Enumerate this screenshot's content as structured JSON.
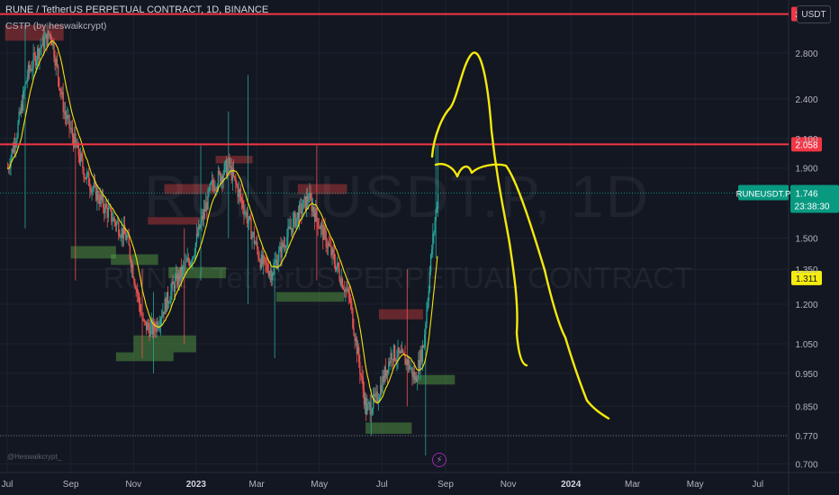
{
  "header": {
    "title": "RUNE / TetherUS PERPETUAL CONTRACT, 1D, BINANCE",
    "indicator": "CSTP (by heswaikcrypt)",
    "currency_button": "USDT"
  },
  "watermark": {
    "symbol": "RUNEUSDT.P, 1D",
    "description": "RUNE / TetherUS PERPETUAL CONTRACT"
  },
  "author": "@Heswaikcrypt_",
  "icons": {
    "events": "lightning-icon"
  },
  "colors": {
    "background": "#131722",
    "grid": "#1e222d",
    "up": "#26a69a",
    "down": "#ef5350",
    "resistance": "#f23645",
    "ma": "#f5e20b",
    "drawing": "#f5e90d",
    "price_label": "#089981",
    "ma_label": "#f5ec0f",
    "supply_zone": "#c83c3c",
    "demand_zone": "#5aa846"
  },
  "chart_data": {
    "type": "candlestick",
    "x_axis": {
      "ticks": [
        "Jul",
        "Sep",
        "Nov",
        "2023",
        "Mar",
        "May",
        "Jul",
        "Sep",
        "Nov",
        "2024",
        "Mar",
        "May",
        "Jul"
      ],
      "tick_dates": [
        "2022-07-01",
        "2022-09-01",
        "2022-11-01",
        "2023-01-01",
        "2023-03-01",
        "2023-05-01",
        "2023-07-01",
        "2023-09-01",
        "2023-11-01",
        "2024-01-01",
        "2024-03-01",
        "2024-05-01",
        "2024-07-01"
      ],
      "range": [
        "2022-06-24",
        "2024-07-31"
      ]
    },
    "y_axis": {
      "scale": "log",
      "ticks": [
        "2.800",
        "2.400",
        "2.100",
        "1.900",
        "1.500",
        "1.350",
        "1.200",
        "1.050",
        "0.950",
        "0.850",
        "0.770",
        "0.700"
      ],
      "range": [
        0.68,
        3.35
      ]
    },
    "resistance_lines": [
      {
        "value": 3.195,
        "label": "3.195"
      },
      {
        "value": 2.058,
        "label": "2.058"
      }
    ],
    "price_labels": [
      {
        "value": 1.746,
        "symbol": "RUNEUSDT.P",
        "price": "1.746",
        "countdown": "23:38:30"
      },
      {
        "value": 1.311,
        "price": "1.311"
      }
    ],
    "dotted_levels": [
      1.746,
      0.77
    ],
    "anchors": [
      {
        "date": "2022-07-01",
        "value": 1.9
      },
      {
        "date": "2022-07-10",
        "value": 2.15
      },
      {
        "date": "2022-07-20",
        "value": 2.6
      },
      {
        "date": "2022-08-01",
        "value": 2.85
      },
      {
        "date": "2022-08-12",
        "value": 3.0
      },
      {
        "date": "2022-08-25",
        "value": 2.3
      },
      {
        "date": "2022-09-15",
        "value": 1.85
      },
      {
        "date": "2022-10-05",
        "value": 1.65
      },
      {
        "date": "2022-10-25",
        "value": 1.5
      },
      {
        "date": "2022-11-10",
        "value": 1.12
      },
      {
        "date": "2022-11-20",
        "value": 1.1
      },
      {
        "date": "2022-12-10",
        "value": 1.28
      },
      {
        "date": "2022-12-28",
        "value": 1.42
      },
      {
        "date": "2023-01-15",
        "value": 1.78
      },
      {
        "date": "2023-02-01",
        "value": 1.92
      },
      {
        "date": "2023-02-15",
        "value": 1.68
      },
      {
        "date": "2023-03-05",
        "value": 1.38
      },
      {
        "date": "2023-03-15",
        "value": 1.34
      },
      {
        "date": "2023-04-05",
        "value": 1.58
      },
      {
        "date": "2023-04-20",
        "value": 1.72
      },
      {
        "date": "2023-05-10",
        "value": 1.45
      },
      {
        "date": "2023-05-30",
        "value": 1.22
      },
      {
        "date": "2023-06-15",
        "value": 0.84
      },
      {
        "date": "2023-06-25",
        "value": 0.87
      },
      {
        "date": "2023-07-10",
        "value": 1.02
      },
      {
        "date": "2023-07-25",
        "value": 0.99
      },
      {
        "date": "2023-08-02",
        "value": 0.93
      },
      {
        "date": "2023-08-10",
        "value": 1.05
      },
      {
        "date": "2023-08-18",
        "value": 1.45
      },
      {
        "date": "2023-08-24",
        "value": 1.746
      }
    ]
  }
}
